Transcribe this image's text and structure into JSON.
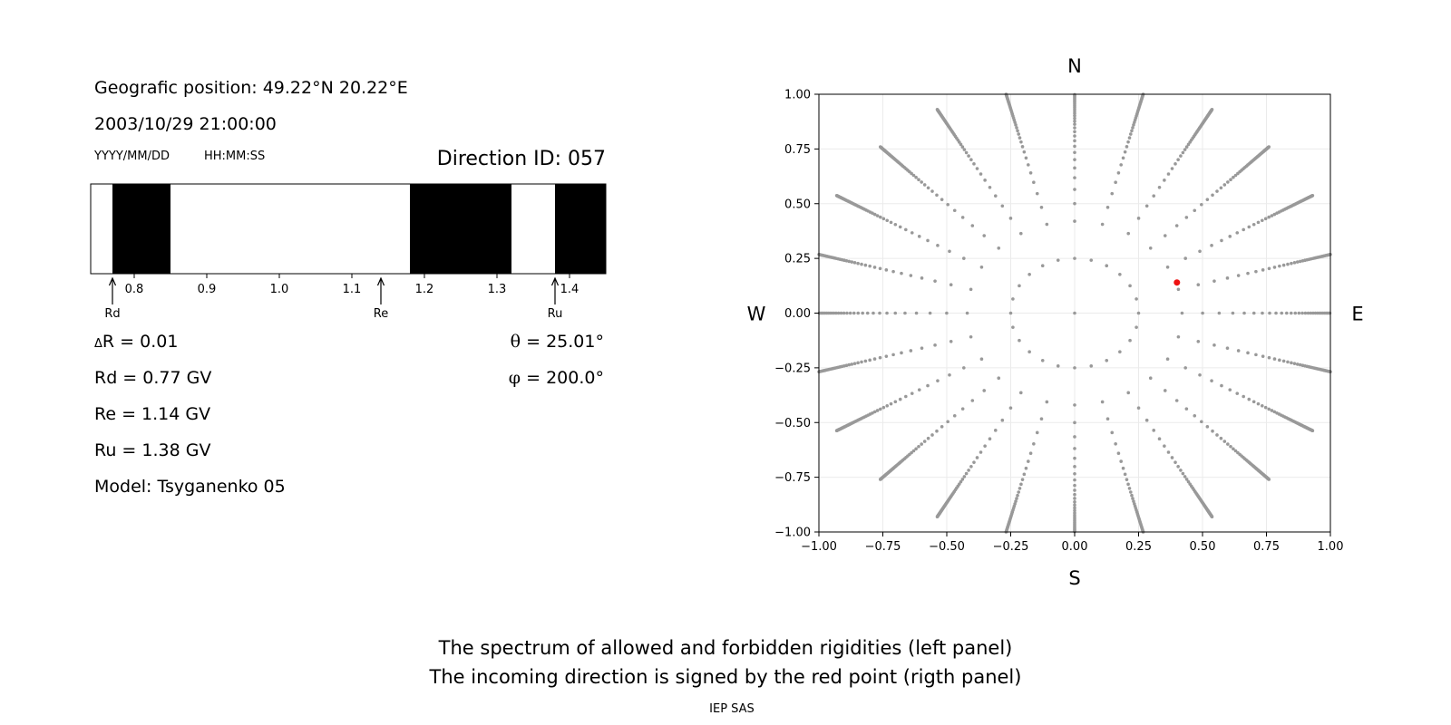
{
  "left_panel": {
    "position": "Geografic position: 49.22°N 20.22°E",
    "datetime": "2003/10/29 21:00:00",
    "date_format": "YYYY/MM/DD",
    "time_format": "HH:MM:SS",
    "direction_id": "Direction ID: 057",
    "params": [
      {
        "id": "dR",
        "sym": "Δ",
        "text": "R = 0.01"
      },
      {
        "id": "rd",
        "text": "Rd = 0.77 GV"
      },
      {
        "id": "re",
        "text": "Re = 1.14 GV"
      },
      {
        "id": "ru",
        "text": "Ru = 1.38 GV"
      },
      {
        "id": "model",
        "text": "Model: Tsyganenko 05"
      }
    ],
    "angles": [
      {
        "id": "theta",
        "sym": "θ",
        "text": " = 25.01°"
      },
      {
        "id": "phi",
        "sym": "φ",
        "text": " = 200.0°"
      }
    ]
  },
  "chart_data": [
    {
      "type": "bar",
      "subtype": "rigidity-spectrum",
      "xlim": [
        0.74,
        1.45
      ],
      "xticks": [
        "0.8",
        "0.9",
        "1.0",
        "1.1",
        "1.2",
        "1.3",
        "1.4"
      ],
      "forbidden_bands": [
        [
          0.77,
          0.85
        ],
        [
          1.18,
          1.32
        ],
        [
          1.38,
          1.45
        ]
      ],
      "markers": [
        {
          "label": "Rd",
          "value": 0.77
        },
        {
          "label": "Re",
          "value": 1.14
        },
        {
          "label": "Ru",
          "value": 1.38
        }
      ]
    },
    {
      "type": "scatter",
      "subtype": "asymptotic-direction-grid",
      "xlim": [
        -1,
        1
      ],
      "ylim": [
        -1,
        1
      ],
      "xticks": [
        "−1.00",
        "−0.75",
        "−0.50",
        "−0.25",
        "0.00",
        "0.25",
        "0.50",
        "0.75",
        "1.00"
      ],
      "yticks": [
        "1.00",
        "0.75",
        "0.50",
        "0.25",
        "0.00",
        "−0.25",
        "−0.50",
        "−0.75",
        "−1.00"
      ],
      "grid": true,
      "compass": {
        "north": "N",
        "south": "S",
        "west": "W",
        "east": "E"
      },
      "grid_point_color": "#999999",
      "highlight": {
        "x": 0.4,
        "y": 0.14,
        "color": "#ee1111"
      }
    }
  ],
  "footer": {
    "line1": "The spectrum of allowed and forbidden rigidities (left panel)",
    "line2": "The incoming direction is signed by the red point (rigth panel)",
    "credit": "IEP SAS"
  }
}
